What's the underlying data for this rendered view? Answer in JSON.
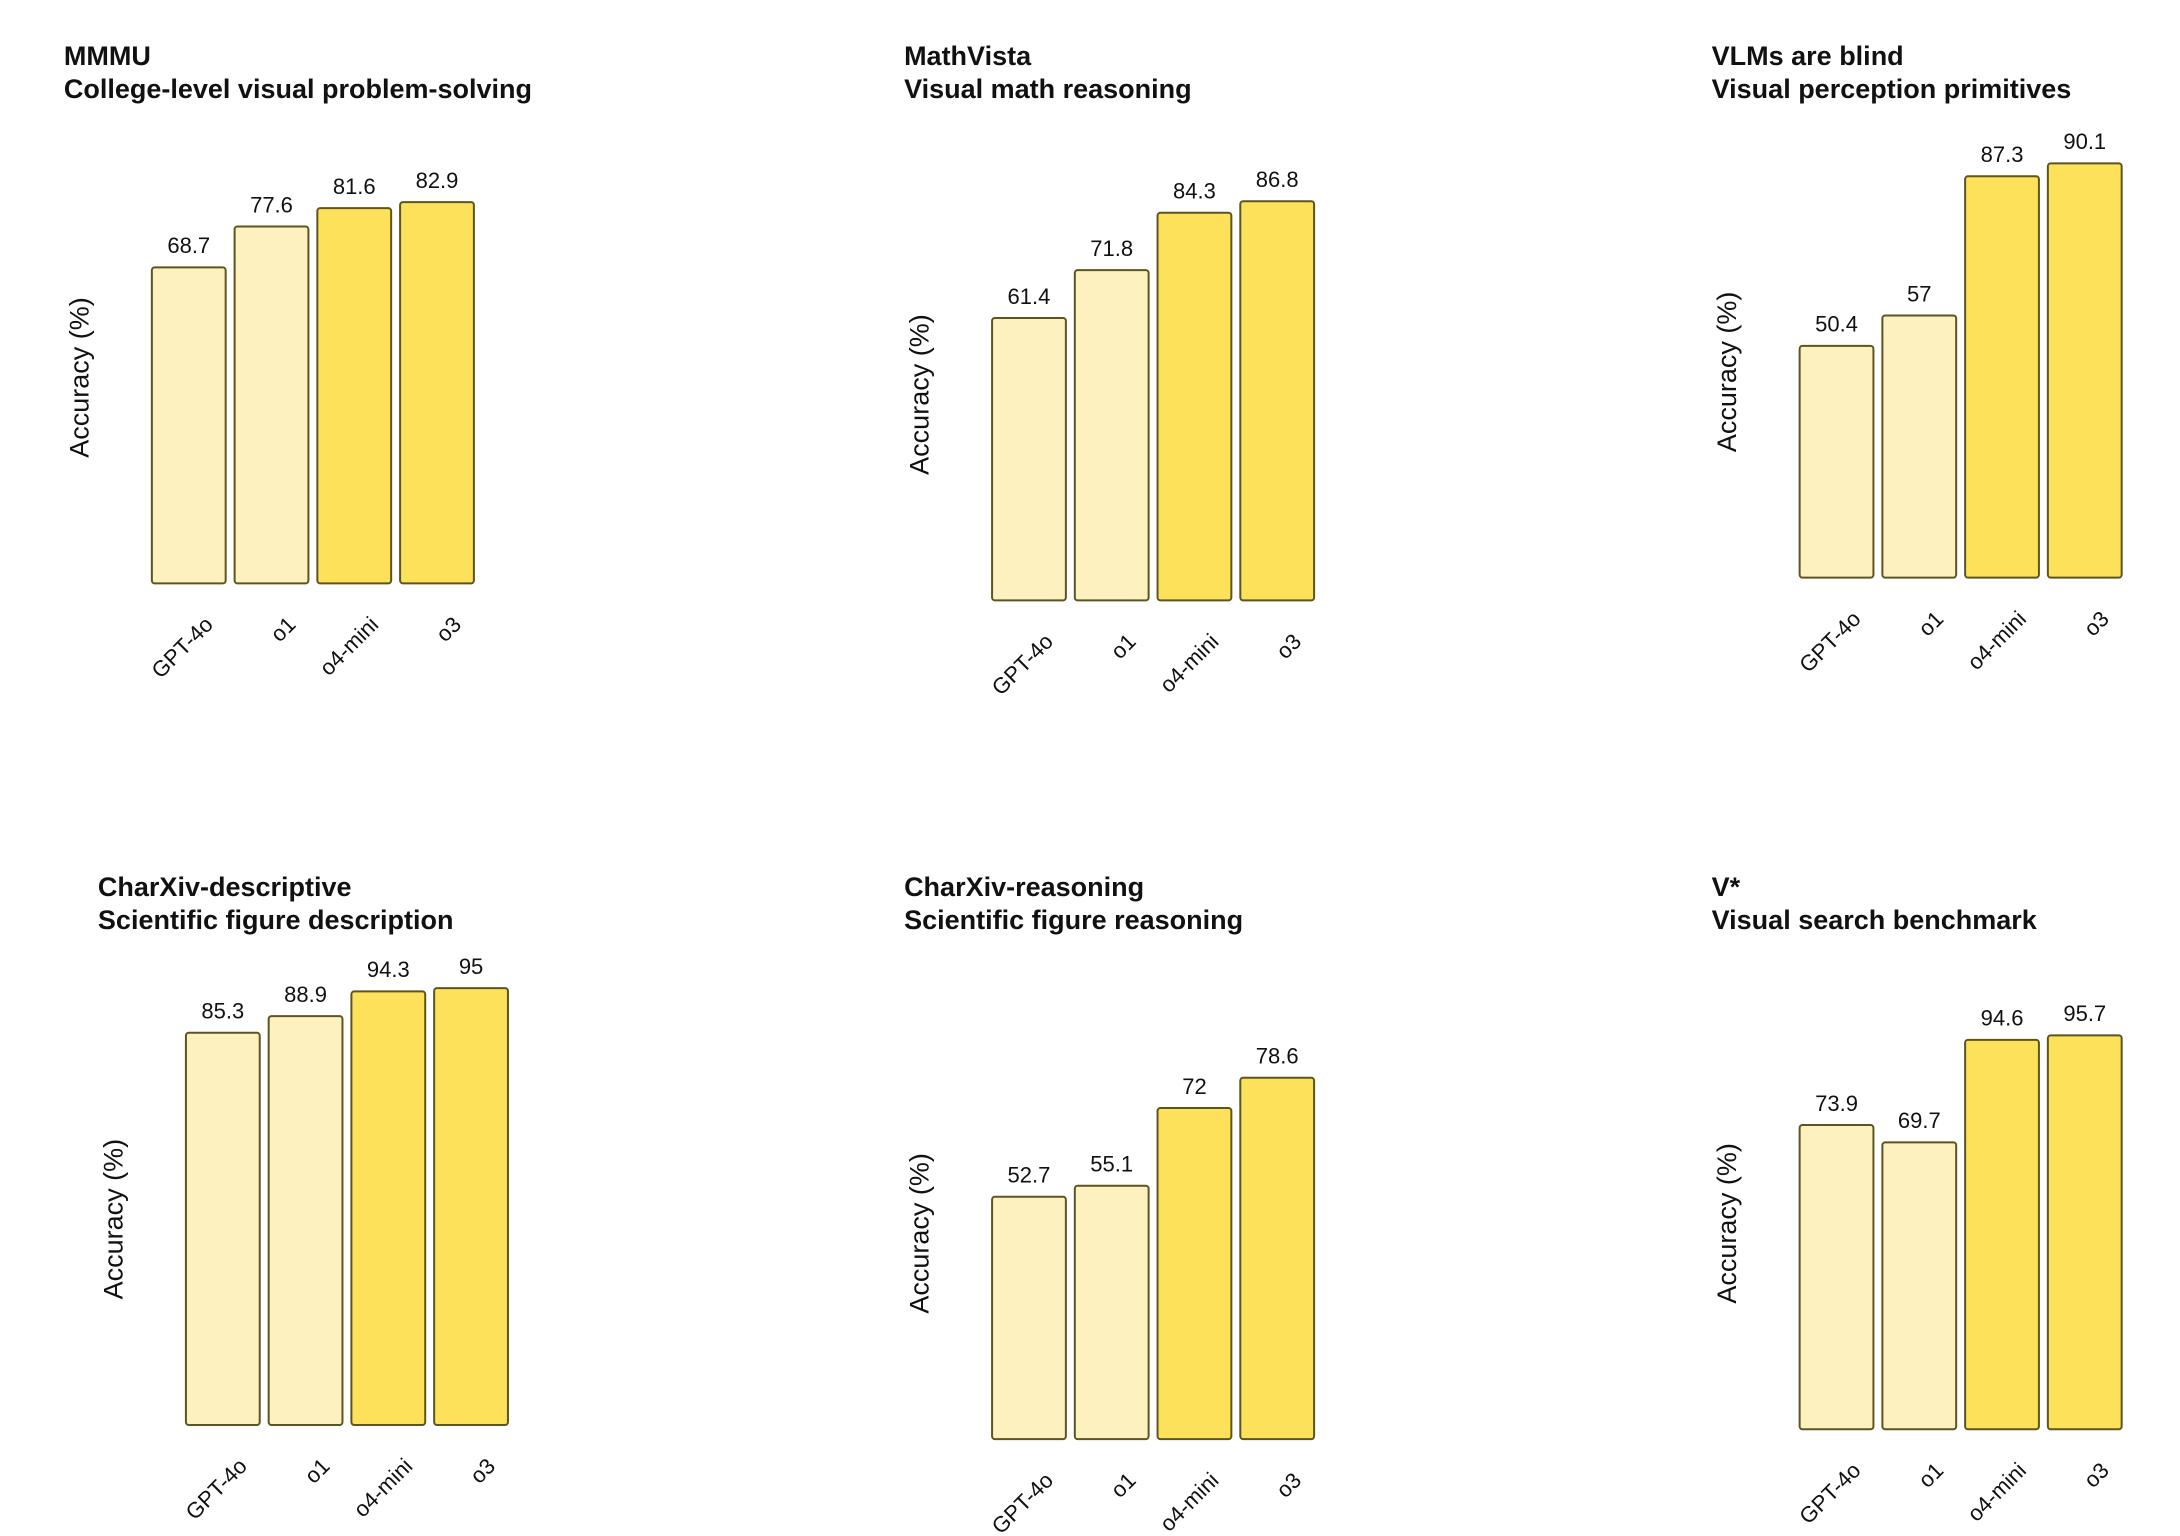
{
  "palette": {
    "light": "#fdf2bf",
    "strong": "#fde15b",
    "stroke": "#5c5520"
  },
  "chart_data": [
    {
      "type": "bar",
      "title": "MMMU",
      "subtitle": "College-level visual problem-solving",
      "ylabel": "Accuracy (%)",
      "categories": [
        "GPT-4o",
        "o1",
        "o4-mini",
        "o3"
      ],
      "values": [
        68.7,
        77.6,
        81.6,
        82.9
      ],
      "highlight": [
        false,
        false,
        true,
        true
      ]
    },
    {
      "type": "bar",
      "title": "MathVista",
      "subtitle": "Visual math reasoning",
      "ylabel": "Accuracy (%)",
      "categories": [
        "GPT-4o",
        "o1",
        "o4-mini",
        "o3"
      ],
      "values": [
        61.4,
        71.8,
        84.3,
        86.8
      ],
      "highlight": [
        false,
        false,
        true,
        true
      ]
    },
    {
      "type": "bar",
      "title": "VLMs are blind",
      "subtitle": "Visual perception primitives",
      "ylabel": "Accuracy (%)",
      "categories": [
        "GPT-4o",
        "o1",
        "o4-mini",
        "o3"
      ],
      "values": [
        50.4,
        57,
        87.3,
        90.1
      ],
      "highlight": [
        false,
        false,
        true,
        true
      ]
    },
    {
      "type": "bar",
      "title": "CharXiv-descriptive",
      "subtitle": "Scientific figure description",
      "ylabel": "Accuracy (%)",
      "categories": [
        "GPT-4o",
        "o1",
        "o4-mini",
        "o3"
      ],
      "values": [
        85.3,
        88.9,
        94.3,
        95
      ],
      "highlight": [
        false,
        false,
        true,
        true
      ]
    },
    {
      "type": "bar",
      "title": "CharXiv-reasoning",
      "subtitle": "Scientific figure reasoning",
      "ylabel": "Accuracy (%)",
      "categories": [
        "GPT-4o",
        "o1",
        "o4-mini",
        "o3"
      ],
      "values": [
        52.7,
        55.1,
        72,
        78.6
      ],
      "highlight": [
        false,
        false,
        true,
        true
      ]
    },
    {
      "type": "bar",
      "title": "V*",
      "subtitle": "Visual search benchmark",
      "ylabel": "Accuracy (%)",
      "categories": [
        "GPT-4o",
        "o1",
        "o4-mini",
        "o3"
      ],
      "values": [
        73.9,
        69.7,
        94.6,
        95.7
      ],
      "highlight": [
        false,
        false,
        true,
        true
      ]
    }
  ]
}
